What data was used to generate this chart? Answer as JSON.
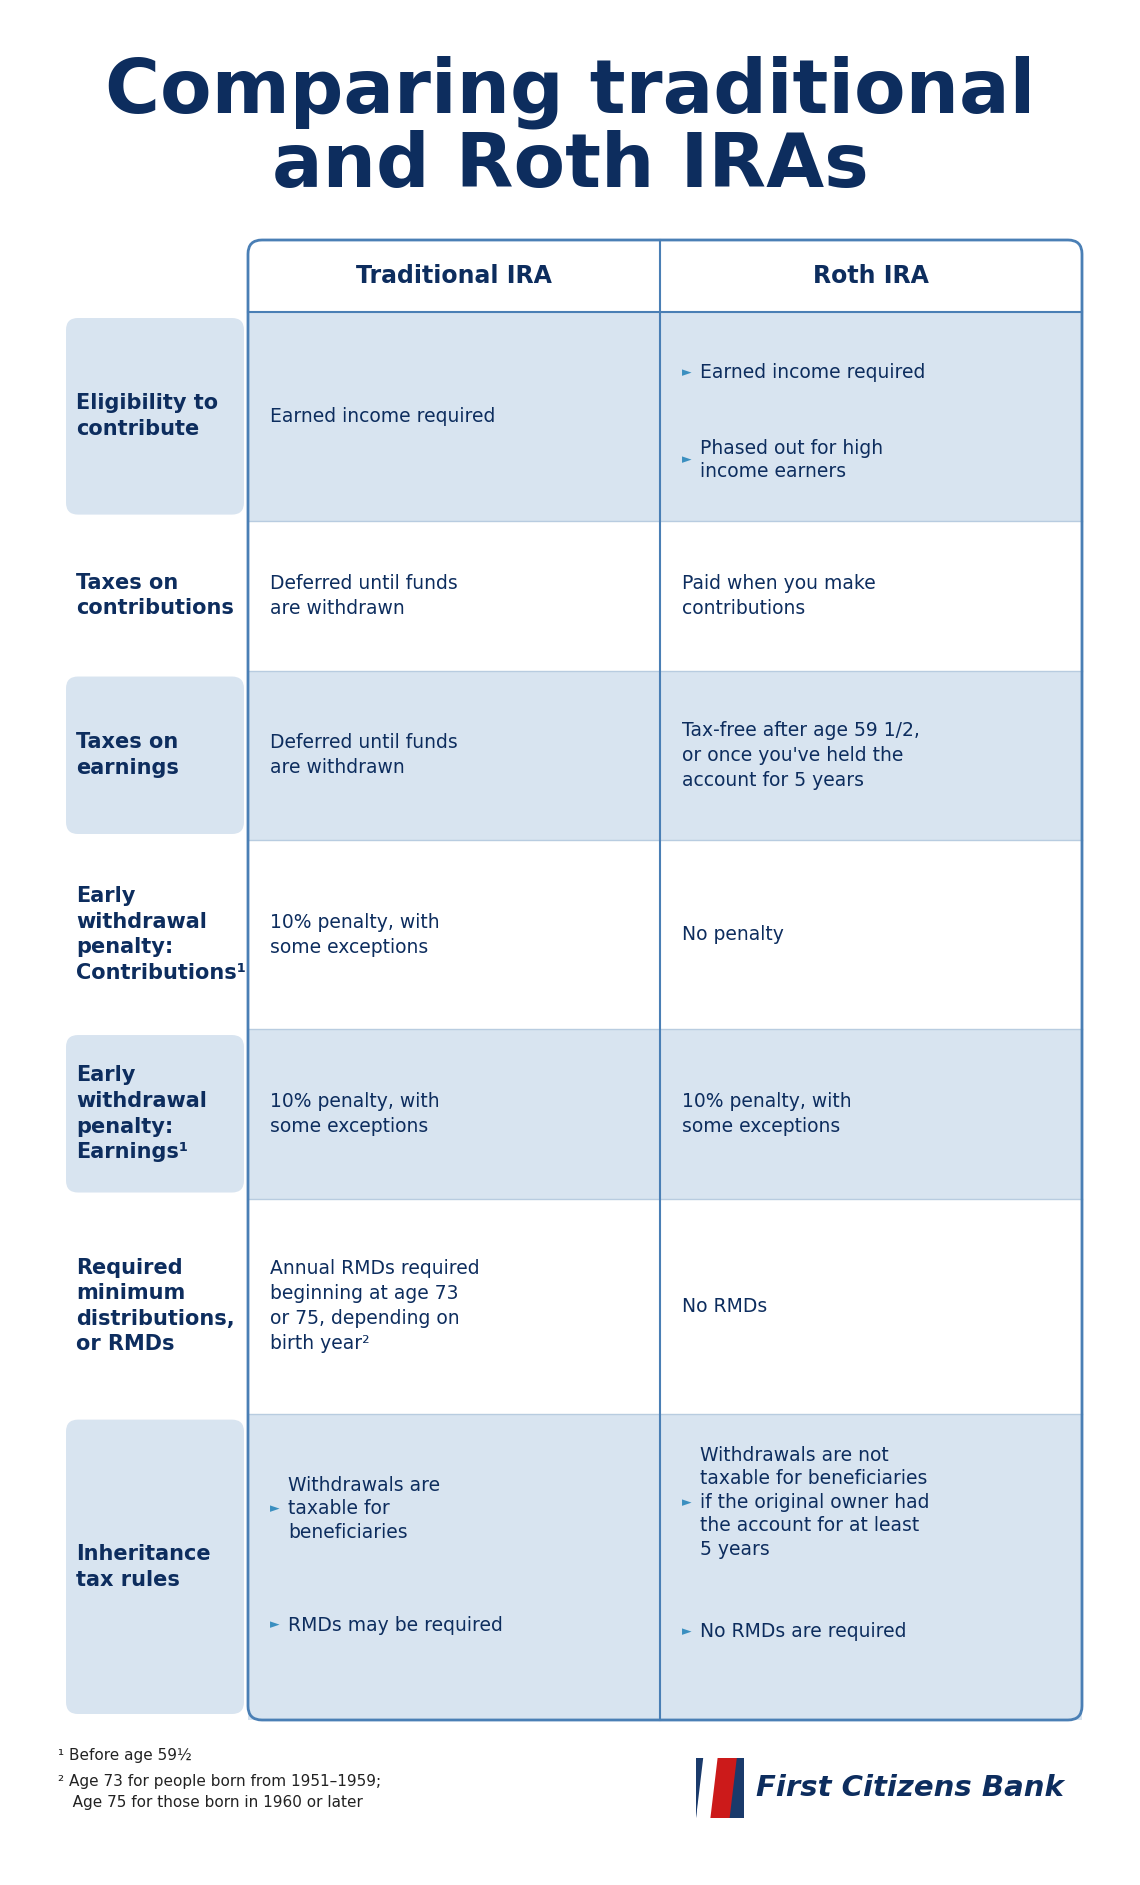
{
  "title_line1": "Comparing traditional",
  "title_line2": "and Roth IRAs",
  "title_color": "#0d2d5e",
  "bg_color": "#ffffff",
  "table_border_color": "#4a7fb5",
  "row_shaded_color": "#d8e4f0",
  "row_white_color": "#ffffff",
  "header_text_color": "#0d2d5e",
  "row_label_color": "#0d2d5e",
  "cell_text_color": "#0d2d5e",
  "bullet_color": "#3a8fc0",
  "col_header_trad": "Traditional IRA",
  "col_header_roth": "Roth IRA",
  "rows": [
    {
      "label": "Eligibility to\ncontribute",
      "shaded": true,
      "trad": "Earned income required",
      "trad_bullets": null,
      "roth_bullets": [
        "Earned income required",
        "Phased out for high\nincome earners"
      ],
      "roth_plain": null
    },
    {
      "label": "Taxes on\ncontributions",
      "shaded": false,
      "trad": "Deferred until funds\nare withdrawn",
      "trad_bullets": null,
      "roth_bullets": null,
      "roth_plain": "Paid when you make\ncontributions"
    },
    {
      "label": "Taxes on\nearnings",
      "shaded": true,
      "trad": "Deferred until funds\nare withdrawn",
      "trad_bullets": null,
      "roth_bullets": null,
      "roth_plain": "Tax-free after age 59 1/2,\nor once you've held the\naccount for 5 years"
    },
    {
      "label": "Early\nwithdrawal\npenalty:\nContributions¹",
      "shaded": false,
      "trad": "10% penalty, with\nsome exceptions",
      "trad_bullets": null,
      "roth_bullets": null,
      "roth_plain": "No penalty"
    },
    {
      "label": "Early\nwithdrawal\npenalty:\nEarnings¹",
      "shaded": true,
      "trad": "10% penalty, with\nsome exceptions",
      "trad_bullets": null,
      "roth_bullets": null,
      "roth_plain": "10% penalty, with\nsome exceptions"
    },
    {
      "label": "Required\nminimum\ndistributions,\nor RMDs",
      "shaded": false,
      "trad": "Annual RMDs required\nbeginning at age 73\nor 75, depending on\nbirth year²",
      "trad_bullets": null,
      "roth_bullets": null,
      "roth_plain": "No RMDs"
    },
    {
      "label": "Inheritance\ntax rules",
      "shaded": true,
      "trad": null,
      "trad_bullets": [
        "Withdrawals are\ntaxable for\nbeneficiaries",
        "RMDs may be required"
      ],
      "roth_bullets": [
        "Withdrawals are not\ntaxable for beneficiaries\nif the original owner had\nthe account for at least\n5 years",
        "No RMDs are required"
      ],
      "roth_plain": null
    }
  ],
  "footnote1": "¹ Before age 59½",
  "footnote2": "² Age 73 for people born from 1951–1959;\n   Age 75 for those born in 1960 or later"
}
